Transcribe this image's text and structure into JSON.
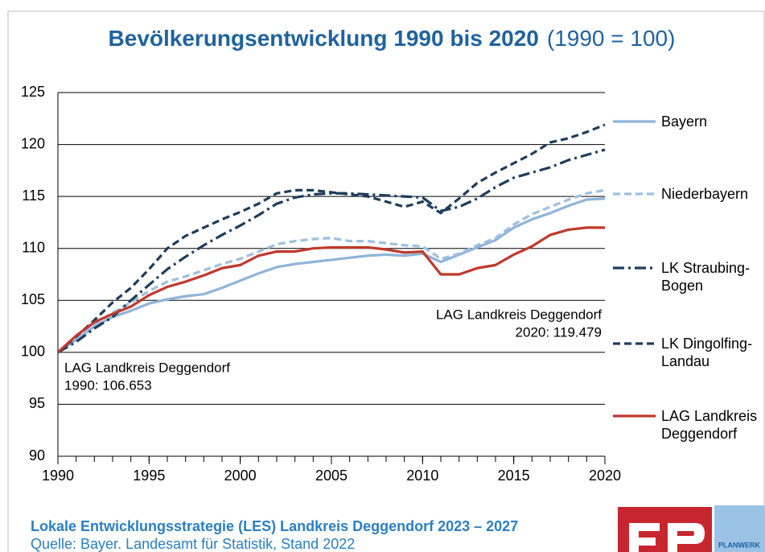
{
  "chart_data": {
    "type": "line",
    "title": "Bevölkerungsentwicklung 1990 bis 2020",
    "title_note": "(1990 = 100)",
    "x": [
      1990,
      1991,
      1992,
      1993,
      1994,
      1995,
      1996,
      1997,
      1998,
      1999,
      2000,
      2001,
      2002,
      2003,
      2004,
      2005,
      2006,
      2007,
      2008,
      2009,
      2010,
      2011,
      2012,
      2013,
      2014,
      2015,
      2016,
      2017,
      2018,
      2019,
      2020
    ],
    "xlim": [
      1990,
      2020
    ],
    "xticks": [
      1990,
      1995,
      2000,
      2005,
      2010,
      2015,
      2020
    ],
    "ylim": [
      90,
      125
    ],
    "yticks": [
      90,
      95,
      100,
      105,
      110,
      115,
      120,
      125
    ],
    "grid": true,
    "legend": "right",
    "series": [
      {
        "name": "Bayern",
        "color": "#8fb4da",
        "dash": "solid",
        "values": [
          100,
          101.2,
          102.5,
          103.4,
          104.0,
          104.7,
          105.1,
          105.4,
          105.6,
          106.2,
          106.9,
          107.6,
          108.2,
          108.5,
          108.7,
          108.9,
          109.1,
          109.3,
          109.4,
          109.3,
          109.5,
          108.7,
          109.4,
          110.1,
          110.8,
          112.0,
          112.8,
          113.4,
          114.1,
          114.7,
          114.8
        ]
      },
      {
        "name": "Niederbayern",
        "color": "#9dbfe0",
        "dash": "dashed",
        "values": [
          100,
          101.3,
          102.7,
          103.8,
          104.8,
          105.9,
          106.8,
          107.3,
          107.9,
          108.5,
          109.0,
          109.7,
          110.4,
          110.7,
          110.9,
          111.0,
          110.7,
          110.7,
          110.5,
          110.3,
          110.2,
          109.0,
          109.5,
          110.3,
          111.0,
          112.3,
          113.3,
          114.0,
          114.7,
          115.3,
          115.6
        ]
      },
      {
        "name": "LK Straubing-Bogen",
        "color": "#1f3d5c",
        "dash": "dashdot",
        "values": [
          100,
          101.0,
          102.3,
          103.4,
          105.0,
          106.5,
          108.0,
          109.2,
          110.3,
          111.3,
          112.2,
          113.2,
          114.3,
          114.9,
          115.2,
          115.3,
          115.3,
          115.2,
          115.1,
          115.0,
          114.9,
          113.6,
          114.0,
          114.8,
          115.9,
          116.8,
          117.3,
          117.8,
          118.5,
          119.0,
          119.5
        ]
      },
      {
        "name": "LK Dingolfing-Landau",
        "color": "#1f3d5c",
        "dash": "dashed",
        "values": [
          100,
          101.5,
          103.1,
          104.8,
          106.2,
          108.0,
          110.0,
          111.2,
          112.0,
          112.8,
          113.5,
          114.3,
          115.3,
          115.6,
          115.6,
          115.4,
          115.2,
          115.0,
          114.5,
          114.0,
          114.5,
          113.4,
          114.8,
          116.3,
          117.3,
          118.2,
          119.1,
          120.2,
          120.6,
          121.2,
          121.9
        ]
      },
      {
        "name": "LAG Landkreis Deggendorf",
        "color": "#c0392b",
        "dash": "solid",
        "values": [
          100,
          101.6,
          102.9,
          103.7,
          104.4,
          105.5,
          106.3,
          106.8,
          107.4,
          108.1,
          108.4,
          109.3,
          109.7,
          109.7,
          110.0,
          110.1,
          110.1,
          110.1,
          109.9,
          109.6,
          109.7,
          107.5,
          107.5,
          108.1,
          108.4,
          109.4,
          110.2,
          111.3,
          111.8,
          112.0,
          112.0
        ]
      }
    ],
    "annotations": [
      {
        "lines": [
          "LAG Landkreis Deggendorf",
          "1990: 106.653"
        ]
      },
      {
        "lines": [
          "LAG Landkreis Deggendorf",
          "2020: 119.479"
        ]
      }
    ]
  },
  "footer": {
    "lines": [
      "Lokale Entwicklungsstrategie (LES) Landkreis Deggendorf 2023 – 2027",
      "Quelle: Bayer. Landesamt für Statistik, Stand 2022"
    ]
  },
  "logo": {
    "text": "PLANWERK"
  }
}
